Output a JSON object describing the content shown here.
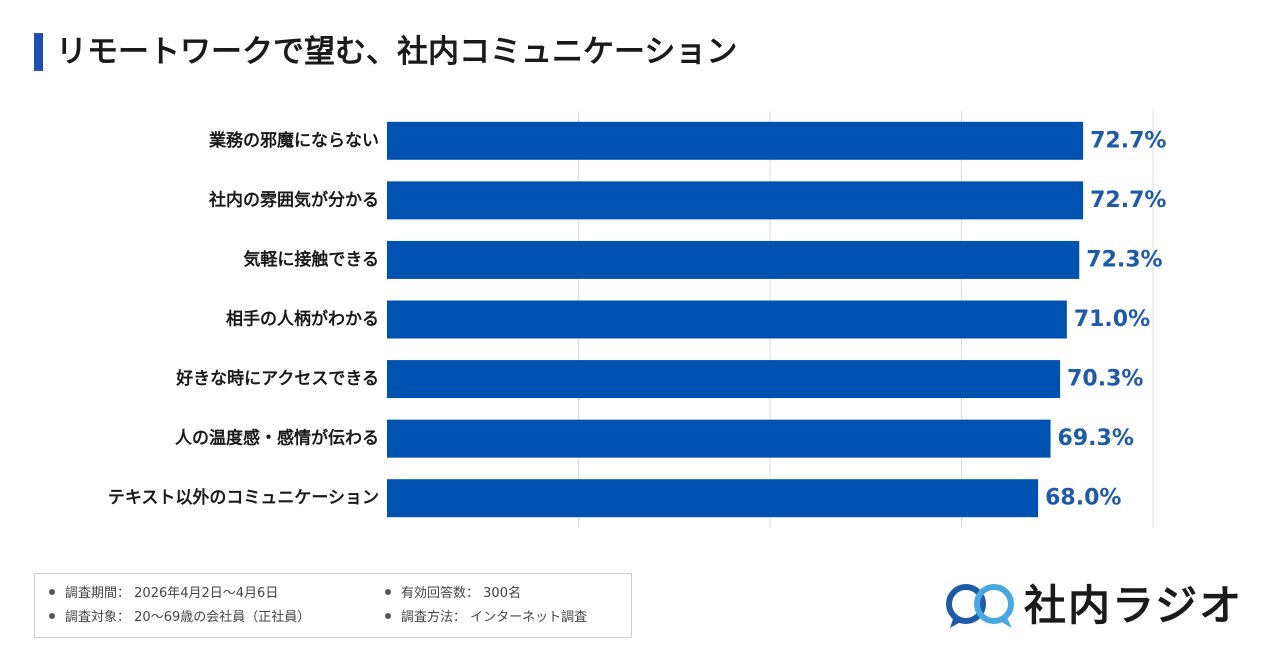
{
  "title": "リモートワークで望む、社内コミュニケーション",
  "chart_data": {
    "type": "bar",
    "orientation": "horizontal",
    "categories": [
      "業務の邪魔にならない",
      "社内の雰囲気が分かる",
      "気軽に接触できる",
      "相手の人柄がわかる",
      "好きな時にアクセスできる",
      "人の温度感・感情が伝わる",
      "テキスト以外のコミュニケーション"
    ],
    "values": [
      72.7,
      72.7,
      72.3,
      71.0,
      70.3,
      69.3,
      68.0
    ],
    "value_labels": [
      "72.7%",
      "72.7%",
      "72.3%",
      "71.0%",
      "70.3%",
      "69.3%",
      "68.0%"
    ],
    "xlim": [
      0,
      80
    ],
    "grid": true,
    "bar_color": "#0052b0",
    "label_color": "#1f5aa8"
  },
  "footer": {
    "items": [
      {
        "label": "調査期間：",
        "value": "2026年4月2日〜4月6日"
      },
      {
        "label": "調査対象：",
        "value": "20〜69歳の会社員（正社員）"
      },
      {
        "label": "有効回答数：",
        "value": "300名"
      },
      {
        "label": "調査方法：",
        "value": "インターネット調査"
      }
    ]
  },
  "logo": {
    "text": "社内ラジオ",
    "icon": "speech-bubbles-icon",
    "colors": [
      "#1f5aa8",
      "#4aa8e0"
    ]
  }
}
